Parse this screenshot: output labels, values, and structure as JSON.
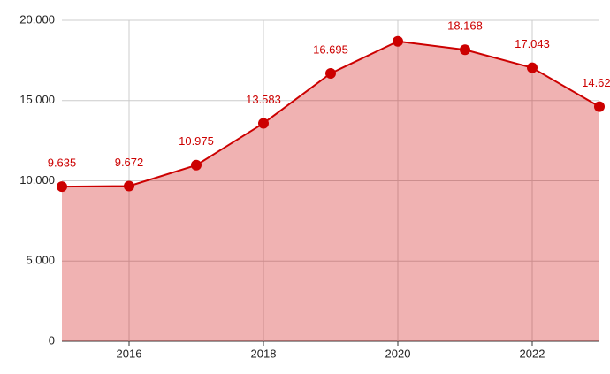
{
  "chart_data": {
    "type": "area",
    "x": [
      2015,
      2016,
      2017,
      2018,
      2019,
      2020,
      2021,
      2022,
      2023
    ],
    "series": [
      {
        "color": "#cc0000",
        "values": [
          9635,
          9672,
          10975,
          13583,
          16695,
          18690,
          18168,
          17043,
          14620
        ],
        "value_labels": [
          "9.635",
          "9.672",
          "10.975",
          "13.583",
          "16.695",
          null,
          "18.168",
          "17.043",
          "14.620"
        ]
      }
    ],
    "xlim": [
      2015,
      2023
    ],
    "xticks": [
      2016,
      2018,
      2020,
      2022
    ],
    "ylim": [
      0,
      20000
    ],
    "yticks": [
      0,
      {
        "value": 5000,
        "label": "5.000"
      },
      {
        "value": 10000,
        "label": "10.000"
      },
      {
        "value": 15000,
        "label": "15.000"
      },
      {
        "value": 20000,
        "label": "20.000"
      }
    ],
    "grid": true
  }
}
